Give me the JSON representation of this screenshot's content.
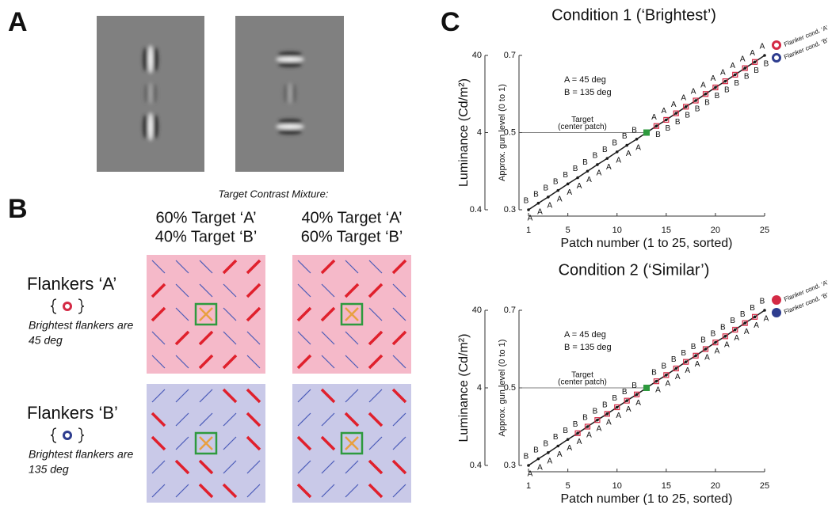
{
  "panel_labels": [
    "A",
    "B",
    "C"
  ],
  "panel_b": {
    "caption": "Target Contrast Mixture:",
    "columns": [
      [
        "60% Target ‘A’",
        "40% Target ‘B’"
      ],
      [
        "40% Target ‘A’",
        "60% Target ‘B’"
      ]
    ],
    "rows": [
      {
        "title": "Flankers ‘A’",
        "note": [
          "Brightest flankers are",
          "45 deg"
        ],
        "background": "#f5b9c9",
        "marker_color": "#d42a45"
      },
      {
        "title": "Flankers ‘B’",
        "note": [
          "Brightest flankers are",
          "135 deg"
        ],
        "background": "#c9c9e8",
        "marker_color": "#2e3d8f"
      }
    ]
  },
  "chart_data": [
    {
      "type": "line",
      "title": "Condition 1 (‘Brightest’)",
      "x_label": "Patch number (1 to 25, sorted)",
      "y_label": "Luminance (Cd/m²)",
      "y2_label": "Approx. gun level (0 to 1)",
      "x": [
        1,
        2,
        3,
        4,
        5,
        6,
        7,
        8,
        9,
        10,
        11,
        12,
        13,
        14,
        15,
        16,
        17,
        18,
        19,
        20,
        21,
        22,
        23,
        24,
        25
      ],
      "series": [
        {
          "color": "#1a1a1a",
          "axis": "y2",
          "values": [
            0.3,
            0.317,
            0.333,
            0.35,
            0.367,
            0.383,
            0.4,
            0.417,
            0.433,
            0.45,
            0.467,
            0.483,
            0.5,
            0.517,
            0.533,
            0.55,
            0.567,
            0.583,
            0.6,
            0.617,
            0.633,
            0.65,
            0.667,
            0.683,
            0.7
          ]
        }
      ],
      "upper_labels": [
        "B",
        "B",
        "B",
        "B",
        "B",
        "B",
        "B",
        "B",
        "B",
        "B",
        "B",
        "B",
        null,
        "A",
        "A",
        "A",
        "A",
        "A",
        "A",
        "A",
        "A",
        "A",
        "A",
        "A",
        "A"
      ],
      "lower_labels": [
        "A",
        "A",
        "A",
        "A",
        "A",
        "A",
        "A",
        "A",
        "A",
        "A",
        "A",
        "A",
        null,
        "B",
        "B",
        "B",
        "B",
        "B",
        "B",
        "B",
        "B",
        "B",
        "B",
        "B",
        "B"
      ],
      "target_patch": 13,
      "flanker_patches": [
        14,
        15,
        16,
        17,
        18,
        19,
        20,
        21,
        22,
        23,
        24
      ],
      "annotations": [
        "A = 45 deg",
        "B = 135 deg",
        "Target",
        "(center patch)"
      ],
      "legend": [
        {
          "label": "Flanker cond. ‘A’",
          "color": "#d42a45"
        },
        {
          "label": "Flanker cond. ‘B’",
          "color": "#2e3d8f"
        }
      ],
      "legend_marker": "ring",
      "xlim": [
        1,
        25
      ],
      "xticks": [
        1,
        5,
        10,
        15,
        20,
        25
      ],
      "ylim": [
        0.4,
        40
      ],
      "yticks": [
        0.4,
        4,
        40
      ],
      "ylog": true,
      "y2lim": [
        0.3,
        0.7
      ],
      "y2ticks": [
        0.3,
        0.5,
        0.7
      ]
    },
    {
      "type": "line",
      "title": "Condition 2 (‘Similar’)",
      "x_label": "Patch number (1 to 25, sorted)",
      "y_label": "Luminance (Cd/m²)",
      "y2_label": "Approx. gun level (0 to 1)",
      "x": [
        1,
        2,
        3,
        4,
        5,
        6,
        7,
        8,
        9,
        10,
        11,
        12,
        13,
        14,
        15,
        16,
        17,
        18,
        19,
        20,
        21,
        22,
        23,
        24,
        25
      ],
      "series": [
        {
          "color": "#1a1a1a",
          "axis": "y2",
          "values": [
            0.3,
            0.317,
            0.333,
            0.35,
            0.367,
            0.383,
            0.4,
            0.417,
            0.433,
            0.45,
            0.467,
            0.483,
            0.5,
            0.517,
            0.533,
            0.55,
            0.567,
            0.583,
            0.6,
            0.617,
            0.633,
            0.65,
            0.667,
            0.683,
            0.7
          ]
        }
      ],
      "upper_labels": [
        "B",
        "B",
        "B",
        "B",
        "B",
        "B",
        "B",
        "B",
        "B",
        "B",
        "B",
        "B",
        null,
        "B",
        "B",
        "B",
        "B",
        "B",
        "B",
        "B",
        "B",
        "B",
        "B",
        "B",
        "B"
      ],
      "lower_labels": [
        "A",
        "A",
        "A",
        "A",
        "A",
        "A",
        "A",
        "A",
        "A",
        "A",
        "A",
        "A",
        null,
        "A",
        "A",
        "A",
        "A",
        "A",
        "A",
        "A",
        "A",
        "A",
        "A",
        "A",
        "A"
      ],
      "target_patch": 13,
      "flanker_patches": [
        6,
        7,
        8,
        9,
        10,
        11,
        12,
        14,
        15,
        16,
        17,
        18,
        19,
        20,
        21,
        22,
        23,
        24
      ],
      "annotations": [
        "A = 45 deg",
        "B = 135 deg",
        "Target",
        "(center patch)"
      ],
      "legend": [
        {
          "label": "Flanker cond. ‘A’",
          "color": "#d42a45"
        },
        {
          "label": "Flanker cond. ‘B’",
          "color": "#2e3d8f"
        }
      ],
      "legend_marker": "filled",
      "xlim": [
        1,
        25
      ],
      "xticks": [
        1,
        5,
        10,
        15,
        20,
        25
      ],
      "ylim": [
        0.4,
        40
      ],
      "yticks": [
        0.4,
        4,
        40
      ],
      "ylog": true,
      "y2lim": [
        0.3,
        0.7
      ],
      "y2ticks": [
        0.3,
        0.5,
        0.7
      ]
    }
  ]
}
